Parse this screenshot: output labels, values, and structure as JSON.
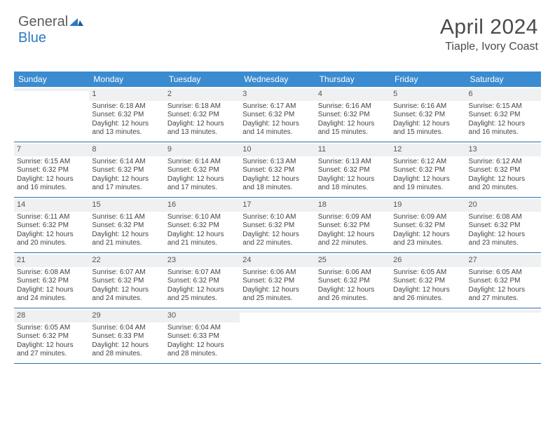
{
  "logo": {
    "word1": "General",
    "word2": "Blue"
  },
  "title": "April 2024",
  "subtitle": "Tiaple, Ivory Coast",
  "colors": {
    "header_bg": "#3b8bd0",
    "header_text": "#ffffff",
    "week_border": "#2f6fa8",
    "daynum_bg": "#eef0f1",
    "text": "#444444",
    "logo_grey": "#5b5b5b",
    "logo_blue": "#2f78c3",
    "background": "#ffffff"
  },
  "typography": {
    "title_fontsize": 30,
    "subtitle_fontsize": 16,
    "header_fontsize": 12,
    "daynum_fontsize": 11,
    "body_fontsize": 10
  },
  "day_names": [
    "Sunday",
    "Monday",
    "Tuesday",
    "Wednesday",
    "Thursday",
    "Friday",
    "Saturday"
  ],
  "weeks": [
    [
      {
        "n": "",
        "sunrise": "",
        "sunset": "",
        "daylight": ""
      },
      {
        "n": "1",
        "sunrise": "Sunrise: 6:18 AM",
        "sunset": "Sunset: 6:32 PM",
        "daylight": "Daylight: 12 hours and 13 minutes."
      },
      {
        "n": "2",
        "sunrise": "Sunrise: 6:18 AM",
        "sunset": "Sunset: 6:32 PM",
        "daylight": "Daylight: 12 hours and 13 minutes."
      },
      {
        "n": "3",
        "sunrise": "Sunrise: 6:17 AM",
        "sunset": "Sunset: 6:32 PM",
        "daylight": "Daylight: 12 hours and 14 minutes."
      },
      {
        "n": "4",
        "sunrise": "Sunrise: 6:16 AM",
        "sunset": "Sunset: 6:32 PM",
        "daylight": "Daylight: 12 hours and 15 minutes."
      },
      {
        "n": "5",
        "sunrise": "Sunrise: 6:16 AM",
        "sunset": "Sunset: 6:32 PM",
        "daylight": "Daylight: 12 hours and 15 minutes."
      },
      {
        "n": "6",
        "sunrise": "Sunrise: 6:15 AM",
        "sunset": "Sunset: 6:32 PM",
        "daylight": "Daylight: 12 hours and 16 minutes."
      }
    ],
    [
      {
        "n": "7",
        "sunrise": "Sunrise: 6:15 AM",
        "sunset": "Sunset: 6:32 PM",
        "daylight": "Daylight: 12 hours and 16 minutes."
      },
      {
        "n": "8",
        "sunrise": "Sunrise: 6:14 AM",
        "sunset": "Sunset: 6:32 PM",
        "daylight": "Daylight: 12 hours and 17 minutes."
      },
      {
        "n": "9",
        "sunrise": "Sunrise: 6:14 AM",
        "sunset": "Sunset: 6:32 PM",
        "daylight": "Daylight: 12 hours and 17 minutes."
      },
      {
        "n": "10",
        "sunrise": "Sunrise: 6:13 AM",
        "sunset": "Sunset: 6:32 PM",
        "daylight": "Daylight: 12 hours and 18 minutes."
      },
      {
        "n": "11",
        "sunrise": "Sunrise: 6:13 AM",
        "sunset": "Sunset: 6:32 PM",
        "daylight": "Daylight: 12 hours and 18 minutes."
      },
      {
        "n": "12",
        "sunrise": "Sunrise: 6:12 AM",
        "sunset": "Sunset: 6:32 PM",
        "daylight": "Daylight: 12 hours and 19 minutes."
      },
      {
        "n": "13",
        "sunrise": "Sunrise: 6:12 AM",
        "sunset": "Sunset: 6:32 PM",
        "daylight": "Daylight: 12 hours and 20 minutes."
      }
    ],
    [
      {
        "n": "14",
        "sunrise": "Sunrise: 6:11 AM",
        "sunset": "Sunset: 6:32 PM",
        "daylight": "Daylight: 12 hours and 20 minutes."
      },
      {
        "n": "15",
        "sunrise": "Sunrise: 6:11 AM",
        "sunset": "Sunset: 6:32 PM",
        "daylight": "Daylight: 12 hours and 21 minutes."
      },
      {
        "n": "16",
        "sunrise": "Sunrise: 6:10 AM",
        "sunset": "Sunset: 6:32 PM",
        "daylight": "Daylight: 12 hours and 21 minutes."
      },
      {
        "n": "17",
        "sunrise": "Sunrise: 6:10 AM",
        "sunset": "Sunset: 6:32 PM",
        "daylight": "Daylight: 12 hours and 22 minutes."
      },
      {
        "n": "18",
        "sunrise": "Sunrise: 6:09 AM",
        "sunset": "Sunset: 6:32 PM",
        "daylight": "Daylight: 12 hours and 22 minutes."
      },
      {
        "n": "19",
        "sunrise": "Sunrise: 6:09 AM",
        "sunset": "Sunset: 6:32 PM",
        "daylight": "Daylight: 12 hours and 23 minutes."
      },
      {
        "n": "20",
        "sunrise": "Sunrise: 6:08 AM",
        "sunset": "Sunset: 6:32 PM",
        "daylight": "Daylight: 12 hours and 23 minutes."
      }
    ],
    [
      {
        "n": "21",
        "sunrise": "Sunrise: 6:08 AM",
        "sunset": "Sunset: 6:32 PM",
        "daylight": "Daylight: 12 hours and 24 minutes."
      },
      {
        "n": "22",
        "sunrise": "Sunrise: 6:07 AM",
        "sunset": "Sunset: 6:32 PM",
        "daylight": "Daylight: 12 hours and 24 minutes."
      },
      {
        "n": "23",
        "sunrise": "Sunrise: 6:07 AM",
        "sunset": "Sunset: 6:32 PM",
        "daylight": "Daylight: 12 hours and 25 minutes."
      },
      {
        "n": "24",
        "sunrise": "Sunrise: 6:06 AM",
        "sunset": "Sunset: 6:32 PM",
        "daylight": "Daylight: 12 hours and 25 minutes."
      },
      {
        "n": "25",
        "sunrise": "Sunrise: 6:06 AM",
        "sunset": "Sunset: 6:32 PM",
        "daylight": "Daylight: 12 hours and 26 minutes."
      },
      {
        "n": "26",
        "sunrise": "Sunrise: 6:05 AM",
        "sunset": "Sunset: 6:32 PM",
        "daylight": "Daylight: 12 hours and 26 minutes."
      },
      {
        "n": "27",
        "sunrise": "Sunrise: 6:05 AM",
        "sunset": "Sunset: 6:32 PM",
        "daylight": "Daylight: 12 hours and 27 minutes."
      }
    ],
    [
      {
        "n": "28",
        "sunrise": "Sunrise: 6:05 AM",
        "sunset": "Sunset: 6:32 PM",
        "daylight": "Daylight: 12 hours and 27 minutes."
      },
      {
        "n": "29",
        "sunrise": "Sunrise: 6:04 AM",
        "sunset": "Sunset: 6:33 PM",
        "daylight": "Daylight: 12 hours and 28 minutes."
      },
      {
        "n": "30",
        "sunrise": "Sunrise: 6:04 AM",
        "sunset": "Sunset: 6:33 PM",
        "daylight": "Daylight: 12 hours and 28 minutes."
      },
      {
        "n": "",
        "sunrise": "",
        "sunset": "",
        "daylight": ""
      },
      {
        "n": "",
        "sunrise": "",
        "sunset": "",
        "daylight": ""
      },
      {
        "n": "",
        "sunrise": "",
        "sunset": "",
        "daylight": ""
      },
      {
        "n": "",
        "sunrise": "",
        "sunset": "",
        "daylight": ""
      }
    ]
  ]
}
